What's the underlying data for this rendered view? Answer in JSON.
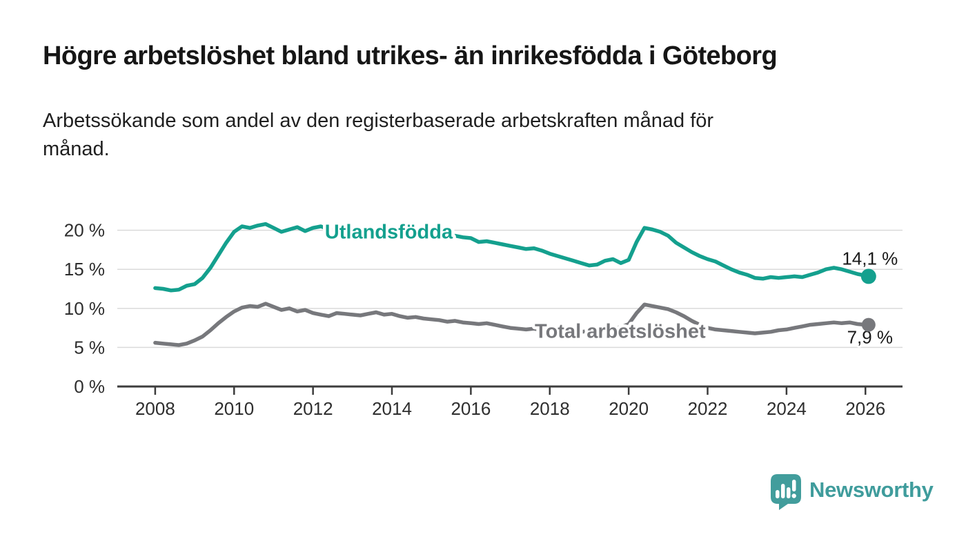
{
  "header": {
    "title": "Högre arbetslöshet bland utrikes- än inrikesfödda i Göteborg",
    "subtitle_lines": [
      "Arbetssökande som andel av den registerbaserade arbetskraften månad för",
      "månad."
    ]
  },
  "footer": {
    "brand": "Newsworthy"
  },
  "colors": {
    "accent_teal": "#14a08e",
    "line_gray": "#77787c",
    "logo_teal": "#429d9c",
    "grid": "#dadada",
    "axis": "#3c3c3c",
    "text_dark": "#1a1a1a"
  },
  "chart_data": {
    "type": "line",
    "title": "Högre arbetslöshet bland utrikes- än inrikesfödda i Göteborg",
    "subtitle": "Arbetssökande som andel av den registerbaserade arbetskraften månad för månad.",
    "xlabel": "",
    "ylabel": "",
    "grid": "horizontal",
    "legend_position": "inline-labels",
    "xlim": [
      2007.04,
      2026.94
    ],
    "ylim": [
      0,
      22
    ],
    "x_start": 2008.0,
    "x_step": 0.2,
    "x_last": 2026.08,
    "yticks": [
      {
        "value": 0,
        "label": "0 %"
      },
      {
        "value": 5,
        "label": "5 %"
      },
      {
        "value": 10,
        "label": "10 %"
      },
      {
        "value": 15,
        "label": "15 %"
      },
      {
        "value": 20,
        "label": "20 %"
      }
    ],
    "xticks": [
      {
        "value": 2008,
        "label": "2008"
      },
      {
        "value": 2010,
        "label": "2010"
      },
      {
        "value": 2012,
        "label": "2012"
      },
      {
        "value": 2014,
        "label": "2014"
      },
      {
        "value": 2016,
        "label": "2016"
      },
      {
        "value": 2018,
        "label": "2018"
      },
      {
        "value": 2020,
        "label": "2020"
      },
      {
        "value": 2022,
        "label": "2022"
      },
      {
        "value": 2024,
        "label": "2024"
      },
      {
        "value": 2026,
        "label": "2026"
      }
    ],
    "series": [
      {
        "name": "Utlandsfödda",
        "label": "Utlandsfödda",
        "color": "#14a08e",
        "end_value": 14.1,
        "end_label": "14,1 %",
        "end_label_position": "above",
        "label_anchor": {
          "year": 2012.3,
          "value": 20.0
        },
        "values": [
          12.6,
          12.5,
          12.3,
          12.4,
          12.9,
          13.1,
          13.9,
          15.2,
          16.8,
          18.4,
          19.8,
          20.5,
          20.3,
          20.6,
          20.8,
          20.3,
          19.8,
          20.1,
          20.4,
          19.9,
          20.3,
          20.5,
          20.1,
          20.0,
          19.9,
          19.8,
          19.7,
          19.8,
          19.6,
          19.5,
          19.6,
          19.5,
          19.4,
          19.5,
          19.3,
          19.4,
          19.3,
          19.2,
          19.3,
          19.1,
          19.0,
          18.5,
          18.6,
          18.4,
          18.2,
          18.0,
          17.8,
          17.6,
          17.7,
          17.4,
          17.0,
          16.7,
          16.4,
          16.1,
          15.8,
          15.5,
          15.6,
          16.1,
          16.3,
          15.8,
          16.2,
          18.5,
          20.3,
          20.1,
          19.8,
          19.3,
          18.4,
          17.8,
          17.2,
          16.7,
          16.3,
          16.0,
          15.5,
          15.0,
          14.6,
          14.3,
          13.9,
          13.8,
          14.0,
          13.9,
          14.0,
          14.1,
          14.0,
          14.3,
          14.6,
          15.0,
          15.2,
          15.0,
          14.7,
          14.4,
          14.2,
          14.1
        ]
      },
      {
        "name": "Total arbetslöshet",
        "label": "Total arbetslöshet",
        "color": "#77787c",
        "end_value": 7.9,
        "end_label": "7,9 %",
        "end_label_position": "below",
        "label_anchor": {
          "year": 2017.62,
          "value": 7.3
        },
        "values": [
          5.6,
          5.5,
          5.4,
          5.3,
          5.5,
          5.9,
          6.4,
          7.2,
          8.1,
          8.9,
          9.6,
          10.1,
          10.3,
          10.2,
          10.6,
          10.2,
          9.8,
          10.0,
          9.6,
          9.8,
          9.4,
          9.2,
          9.0,
          9.4,
          9.3,
          9.2,
          9.1,
          9.3,
          9.5,
          9.2,
          9.3,
          9.0,
          8.8,
          8.9,
          8.7,
          8.6,
          8.5,
          8.3,
          8.4,
          8.2,
          8.1,
          8.0,
          8.1,
          7.9,
          7.7,
          7.5,
          7.4,
          7.3,
          7.4,
          7.2,
          7.2,
          7.1,
          7.2,
          7.1,
          7.0,
          7.1,
          7.2,
          7.3,
          7.4,
          7.6,
          8.0,
          9.4,
          10.5,
          10.3,
          10.1,
          9.9,
          9.5,
          9.0,
          8.4,
          7.9,
          7.5,
          7.3,
          7.2,
          7.1,
          7.0,
          6.9,
          6.8,
          6.9,
          7.0,
          7.2,
          7.3,
          7.5,
          7.7,
          7.9,
          8.0,
          8.1,
          8.2,
          8.1,
          8.2,
          8.0,
          7.9,
          7.9
        ]
      }
    ]
  }
}
